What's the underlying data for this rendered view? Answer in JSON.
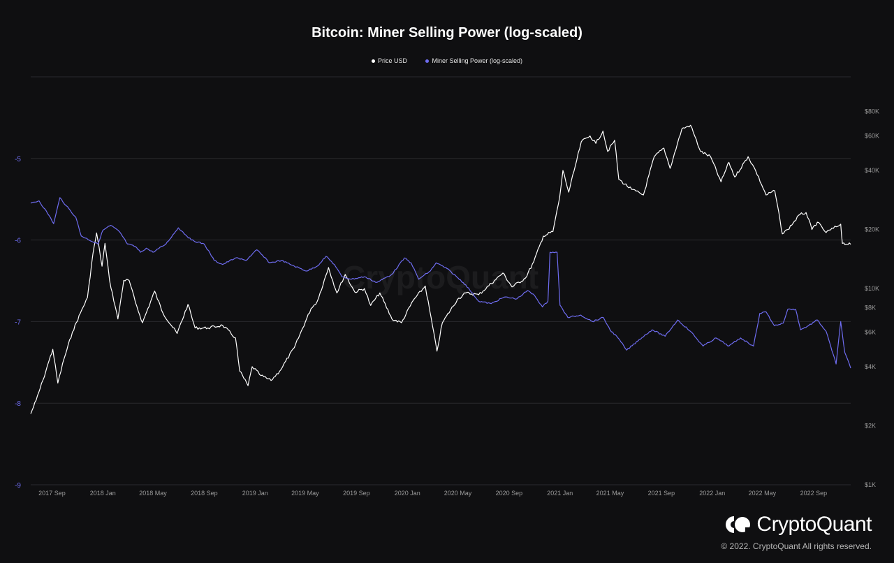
{
  "chart_data": {
    "type": "line",
    "title": "Bitcoin: Miner Selling Power (log-scaled)",
    "x_ticks": [
      "2017 Sep",
      "2018 Jan",
      "2018 May",
      "2018 Sep",
      "2019 Jan",
      "2019 May",
      "2019 Sep",
      "2020 Jan",
      "2020 May",
      "2020 Sep",
      "2021 Jan",
      "2021 May",
      "2021 Sep",
      "2022 Jan",
      "2022 May",
      "2022 Sep"
    ],
    "x_range": [
      "2017-07-12",
      "2022-11-29"
    ],
    "y_left": {
      "min": -9,
      "max": -4,
      "ticks": [
        -5,
        -6,
        -7,
        -8,
        -9
      ],
      "color": "#6e6cf0"
    },
    "y_right": {
      "scale": "log",
      "min": 1000,
      "max": 120000,
      "ticks": [
        80000,
        60000,
        40000,
        20000,
        10000,
        8000,
        6000,
        4000,
        2000,
        1000
      ],
      "tick_labels": [
        "$80K",
        "$60K",
        "$40K",
        "$20K",
        "$10K",
        "$8K",
        "$6K",
        "$4K",
        "$2K",
        "$1K"
      ]
    },
    "grid": true,
    "legend_position": "top-center",
    "series": [
      {
        "name": "Price USD",
        "axis": "right",
        "color": "#ffffff",
        "points": [
          [
            "2017-07-12",
            2300
          ],
          [
            "2017-07-25",
            2700
          ],
          [
            "2017-08-10",
            3400
          ],
          [
            "2017-08-25",
            4300
          ],
          [
            "2017-09-03",
            4900
          ],
          [
            "2017-09-15",
            3300
          ],
          [
            "2017-09-30",
            4400
          ],
          [
            "2017-10-20",
            6000
          ],
          [
            "2017-11-08",
            7500
          ],
          [
            "2017-11-25",
            9000
          ],
          [
            "2017-12-08",
            15000
          ],
          [
            "2017-12-17",
            19200
          ],
          [
            "2017-12-30",
            13000
          ],
          [
            "2018-01-06",
            17000
          ],
          [
            "2018-01-17",
            11000
          ],
          [
            "2018-02-06",
            7000
          ],
          [
            "2018-02-20",
            11000
          ],
          [
            "2018-03-05",
            11000
          ],
          [
            "2018-03-20",
            8500
          ],
          [
            "2018-04-06",
            6700
          ],
          [
            "2018-05-05",
            9700
          ],
          [
            "2018-05-25",
            7500
          ],
          [
            "2018-06-28",
            5900
          ],
          [
            "2018-07-24",
            8300
          ],
          [
            "2018-08-10",
            6300
          ],
          [
            "2018-09-10",
            6300
          ],
          [
            "2018-10-15",
            6500
          ],
          [
            "2018-11-15",
            5600
          ],
          [
            "2018-11-25",
            3800
          ],
          [
            "2018-12-15",
            3200
          ],
          [
            "2018-12-25",
            4000
          ],
          [
            "2019-01-15",
            3600
          ],
          [
            "2019-02-08",
            3400
          ],
          [
            "2019-03-01",
            3800
          ],
          [
            "2019-04-05",
            5000
          ],
          [
            "2019-05-15",
            7900
          ],
          [
            "2019-05-30",
            8600
          ],
          [
            "2019-06-26",
            12800
          ],
          [
            "2019-07-16",
            9500
          ],
          [
            "2019-08-05",
            11800
          ],
          [
            "2019-08-28",
            9600
          ],
          [
            "2019-09-20",
            10000
          ],
          [
            "2019-10-05",
            8200
          ],
          [
            "2019-10-27",
            9500
          ],
          [
            "2019-11-25",
            7000
          ],
          [
            "2019-12-18",
            6700
          ],
          [
            "2020-01-15",
            8700
          ],
          [
            "2020-02-13",
            10300
          ],
          [
            "2020-03-12",
            4800
          ],
          [
            "2020-03-25",
            6700
          ],
          [
            "2020-04-30",
            8800
          ],
          [
            "2020-05-20",
            9500
          ],
          [
            "2020-06-20",
            9300
          ],
          [
            "2020-07-28",
            11000
          ],
          [
            "2020-08-17",
            12000
          ],
          [
            "2020-09-08",
            10200
          ],
          [
            "2020-10-10",
            11300
          ],
          [
            "2020-10-30",
            13700
          ],
          [
            "2020-11-22",
            18500
          ],
          [
            "2020-12-15",
            19500
          ],
          [
            "2020-12-31",
            29000
          ],
          [
            "2021-01-08",
            40000
          ],
          [
            "2021-01-22",
            31000
          ],
          [
            "2021-02-10",
            45000
          ],
          [
            "2021-02-21",
            56000
          ],
          [
            "2021-03-14",
            60000
          ],
          [
            "2021-03-28",
            55000
          ],
          [
            "2021-04-14",
            63500
          ],
          [
            "2021-04-25",
            50000
          ],
          [
            "2021-05-12",
            57000
          ],
          [
            "2021-05-22",
            36000
          ],
          [
            "2021-06-22",
            32000
          ],
          [
            "2021-07-20",
            30000
          ],
          [
            "2021-08-15",
            47000
          ],
          [
            "2021-09-07",
            52000
          ],
          [
            "2021-09-22",
            41000
          ],
          [
            "2021-10-20",
            65000
          ],
          [
            "2021-11-10",
            68000
          ],
          [
            "2021-12-04",
            50000
          ],
          [
            "2021-12-28",
            47000
          ],
          [
            "2022-01-22",
            35000
          ],
          [
            "2022-02-10",
            44000
          ],
          [
            "2022-02-24",
            37000
          ],
          [
            "2022-03-28",
            47000
          ],
          [
            "2022-04-15",
            40000
          ],
          [
            "2022-05-10",
            30000
          ],
          [
            "2022-05-31",
            31500
          ],
          [
            "2022-06-13",
            22000
          ],
          [
            "2022-06-18",
            19000
          ],
          [
            "2022-07-01",
            20000
          ],
          [
            "2022-07-30",
            23800
          ],
          [
            "2022-08-14",
            24400
          ],
          [
            "2022-08-28",
            20000
          ],
          [
            "2022-09-10",
            21800
          ],
          [
            "2022-10-01",
            19300
          ],
          [
            "2022-11-05",
            21300
          ],
          [
            "2022-11-09",
            17000
          ],
          [
            "2022-11-29",
            16800
          ]
        ]
      },
      {
        "name": "Miner Selling Power (log-scaled)",
        "axis": "left",
        "color": "#6e6cf0",
        "points": [
          [
            "2017-07-12",
            -5.55
          ],
          [
            "2017-08-01",
            -5.52
          ],
          [
            "2017-08-25",
            -5.7
          ],
          [
            "2017-09-05",
            -5.8
          ],
          [
            "2017-09-20",
            -5.48
          ],
          [
            "2017-10-05",
            -5.58
          ],
          [
            "2017-10-28",
            -5.72
          ],
          [
            "2017-11-10",
            -5.95
          ],
          [
            "2017-12-20",
            -6.05
          ],
          [
            "2018-01-01",
            -5.88
          ],
          [
            "2018-01-20",
            -5.82
          ],
          [
            "2018-02-10",
            -5.9
          ],
          [
            "2018-03-01",
            -6.05
          ],
          [
            "2018-03-20",
            -6.08
          ],
          [
            "2018-04-01",
            -6.15
          ],
          [
            "2018-04-15",
            -6.1
          ],
          [
            "2018-05-01",
            -6.15
          ],
          [
            "2018-06-01",
            -6.05
          ],
          [
            "2018-07-01",
            -5.85
          ],
          [
            "2018-08-01",
            -6.0
          ],
          [
            "2018-09-01",
            -6.05
          ],
          [
            "2018-09-25",
            -6.25
          ],
          [
            "2018-10-15",
            -6.3
          ],
          [
            "2018-11-15",
            -6.22
          ],
          [
            "2018-12-10",
            -6.25
          ],
          [
            "2019-01-05",
            -6.12
          ],
          [
            "2019-02-05",
            -6.28
          ],
          [
            "2019-03-05",
            -6.25
          ],
          [
            "2019-04-05",
            -6.32
          ],
          [
            "2019-05-05",
            -6.38
          ],
          [
            "2019-05-30",
            -6.32
          ],
          [
            "2019-06-20",
            -6.2
          ],
          [
            "2019-07-10",
            -6.3
          ],
          [
            "2019-07-28",
            -6.45
          ],
          [
            "2019-08-20",
            -6.48
          ],
          [
            "2019-09-20",
            -6.45
          ],
          [
            "2019-10-20",
            -6.52
          ],
          [
            "2019-11-25",
            -6.42
          ],
          [
            "2019-12-25",
            -6.22
          ],
          [
            "2020-01-10",
            -6.28
          ],
          [
            "2020-01-28",
            -6.48
          ],
          [
            "2020-02-25",
            -6.38
          ],
          [
            "2020-03-10",
            -6.28
          ],
          [
            "2020-04-05",
            -6.35
          ],
          [
            "2020-04-28",
            -6.45
          ],
          [
            "2020-05-20",
            -6.55
          ],
          [
            "2020-06-20",
            -6.75
          ],
          [
            "2020-07-20",
            -6.78
          ],
          [
            "2020-08-20",
            -6.7
          ],
          [
            "2020-09-20",
            -6.72
          ],
          [
            "2020-10-15",
            -6.62
          ],
          [
            "2020-11-01",
            -6.68
          ],
          [
            "2020-11-20",
            -6.82
          ],
          [
            "2020-12-03",
            -6.75
          ],
          [
            "2020-12-08",
            -6.15
          ],
          [
            "2020-12-25",
            -6.15
          ],
          [
            "2021-01-01",
            -6.8
          ],
          [
            "2021-01-20",
            -6.95
          ],
          [
            "2021-02-20",
            -6.92
          ],
          [
            "2021-03-20",
            -7.0
          ],
          [
            "2021-04-15",
            -6.95
          ],
          [
            "2021-05-01",
            -7.1
          ],
          [
            "2021-05-20",
            -7.2
          ],
          [
            "2021-06-10",
            -7.35
          ],
          [
            "2021-07-10",
            -7.22
          ],
          [
            "2021-08-10",
            -7.1
          ],
          [
            "2021-09-10",
            -7.18
          ],
          [
            "2021-10-10",
            -6.98
          ],
          [
            "2021-11-10",
            -7.12
          ],
          [
            "2021-12-10",
            -7.3
          ],
          [
            "2022-01-10",
            -7.2
          ],
          [
            "2022-02-10",
            -7.3
          ],
          [
            "2022-03-10",
            -7.2
          ],
          [
            "2022-04-10",
            -7.3
          ],
          [
            "2022-04-25",
            -6.9
          ],
          [
            "2022-05-10",
            -6.88
          ],
          [
            "2022-05-30",
            -7.05
          ],
          [
            "2022-06-20",
            -7.02
          ],
          [
            "2022-07-01",
            -6.85
          ],
          [
            "2022-07-20",
            -6.85
          ],
          [
            "2022-08-01",
            -7.1
          ],
          [
            "2022-08-20",
            -7.05
          ],
          [
            "2022-09-10",
            -6.98
          ],
          [
            "2022-10-01",
            -7.12
          ],
          [
            "2022-10-25",
            -7.52
          ],
          [
            "2022-11-05",
            -7.0
          ],
          [
            "2022-11-15",
            -7.38
          ],
          [
            "2022-11-29",
            -7.57
          ]
        ]
      }
    ]
  },
  "legend": {
    "items": [
      "Price USD",
      "Miner Selling Power (log-scaled)"
    ]
  },
  "brand": {
    "name": "CryptoQuant",
    "copyright": "© 2022. CryptoQuant All rights reserved.",
    "watermark": "CryptoQuant",
    "logo_icon": "cryptoquant-logo-icon"
  }
}
